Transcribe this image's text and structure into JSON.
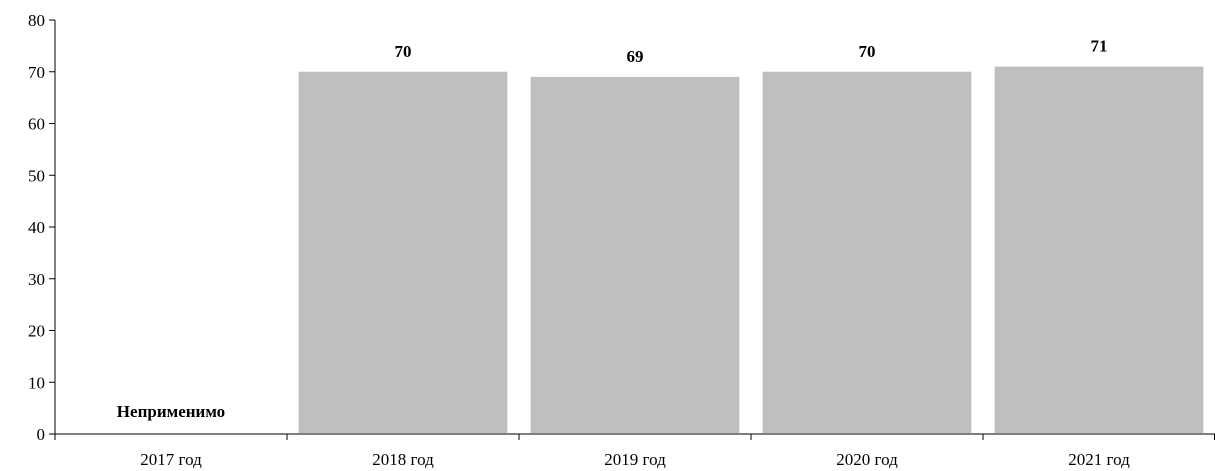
{
  "chart_data": {
    "type": "bar",
    "categories": [
      "2017 год",
      "2018 год",
      "2019 год",
      "2020 год",
      "2021 год"
    ],
    "values": [
      null,
      70,
      69,
      70,
      71
    ],
    "data_labels": [
      "Неприменимо",
      "70",
      "69",
      "70",
      "71"
    ],
    "title": "",
    "xlabel": "",
    "ylabel": "",
    "ylim": [
      0,
      80
    ],
    "yticks": [
      0,
      10,
      20,
      30,
      40,
      50,
      60,
      70,
      80
    ],
    "bar_color": "#bfbfbf",
    "grid": false,
    "legend": "none"
  }
}
